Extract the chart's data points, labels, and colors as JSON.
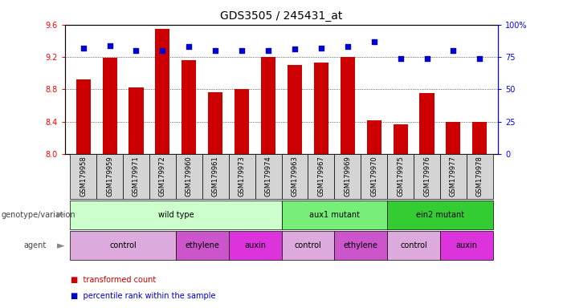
{
  "title": "GDS3505 / 245431_at",
  "samples": [
    "GSM179958",
    "GSM179959",
    "GSM179971",
    "GSM179972",
    "GSM179960",
    "GSM179961",
    "GSM179973",
    "GSM179974",
    "GSM179963",
    "GSM179967",
    "GSM179969",
    "GSM179970",
    "GSM179975",
    "GSM179976",
    "GSM179977",
    "GSM179978"
  ],
  "transformed_count": [
    8.92,
    9.19,
    8.82,
    9.55,
    9.16,
    8.76,
    8.8,
    9.2,
    9.1,
    9.13,
    9.2,
    8.42,
    8.37,
    8.75,
    8.4,
    8.4
  ],
  "percentile": [
    82,
    84,
    80,
    80,
    83,
    80,
    80,
    80,
    81,
    82,
    83,
    87,
    74,
    74,
    80,
    74
  ],
  "y_min": 8.0,
  "y_max": 9.6,
  "y_ticks": [
    8.0,
    8.4,
    8.8,
    9.2,
    9.6
  ],
  "right_y_ticks": [
    0,
    25,
    50,
    75,
    100
  ],
  "right_y_labels": [
    "0",
    "25",
    "50",
    "75",
    "100%"
  ],
  "bar_color": "#cc0000",
  "dot_color": "#0000cc",
  "sample_box_color": "#cccccc",
  "genotype_groups": [
    {
      "label": "wild type",
      "start": 0,
      "end": 8,
      "color": "#ccffcc"
    },
    {
      "label": "aux1 mutant",
      "start": 8,
      "end": 12,
      "color": "#77ee77"
    },
    {
      "label": "ein2 mutant",
      "start": 12,
      "end": 16,
      "color": "#33cc33"
    }
  ],
  "agent_groups": [
    {
      "label": "control",
      "start": 0,
      "end": 4,
      "color": "#ddaadd"
    },
    {
      "label": "ethylene",
      "start": 4,
      "end": 6,
      "color": "#cc55cc"
    },
    {
      "label": "auxin",
      "start": 6,
      "end": 8,
      "color": "#dd33dd"
    },
    {
      "label": "control",
      "start": 8,
      "end": 10,
      "color": "#ddaadd"
    },
    {
      "label": "ethylene",
      "start": 10,
      "end": 12,
      "color": "#cc55cc"
    },
    {
      "label": "control",
      "start": 12,
      "end": 14,
      "color": "#ddaadd"
    },
    {
      "label": "auxin",
      "start": 14,
      "end": 16,
      "color": "#dd33dd"
    }
  ],
  "legend_items": [
    {
      "label": "transformed count",
      "color": "#cc0000"
    },
    {
      "label": "percentile rank within the sample",
      "color": "#0000cc"
    }
  ],
  "label_genotype": "genotype/variation",
  "label_agent": "agent",
  "title_fontsize": 10,
  "tick_fontsize": 7,
  "sample_fontsize": 6,
  "annotation_fontsize": 7,
  "legend_fontsize": 7
}
